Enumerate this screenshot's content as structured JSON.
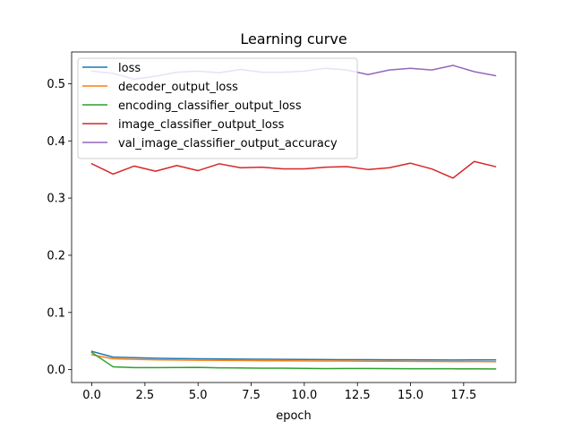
{
  "chart_data": {
    "type": "line",
    "title": "Learning curve",
    "xlabel": "epoch",
    "ylabel": "",
    "xlim": [
      -0.95,
      19.95
    ],
    "ylim": [
      -0.0225,
      0.5555
    ],
    "xticks": [
      0.0,
      2.5,
      5.0,
      7.5,
      10.0,
      12.5,
      15.0,
      17.5
    ],
    "xtick_labels": [
      "0.0",
      "2.5",
      "5.0",
      "7.5",
      "10.0",
      "12.5",
      "15.0",
      "17.5"
    ],
    "yticks": [
      0.0,
      0.1,
      0.2,
      0.3,
      0.4,
      0.5
    ],
    "ytick_labels": [
      "0.0",
      "0.1",
      "0.2",
      "0.3",
      "0.4",
      "0.5"
    ],
    "grid": false,
    "legend_position": "top-left",
    "x": [
      0,
      1,
      2,
      3,
      4,
      5,
      6,
      7,
      8,
      9,
      10,
      11,
      12,
      13,
      14,
      15,
      16,
      17,
      18,
      19
    ],
    "series": [
      {
        "name": "loss",
        "color": "#1f77b4",
        "values": [
          0.032,
          0.022,
          0.021,
          0.02,
          0.0195,
          0.019,
          0.0188,
          0.0185,
          0.0182,
          0.018,
          0.0178,
          0.0176,
          0.0175,
          0.0174,
          0.0173,
          0.0172,
          0.017,
          0.0168,
          0.017,
          0.017
        ]
      },
      {
        "name": "decoder_output_loss",
        "color": "#ff7f0e",
        "values": [
          0.026,
          0.019,
          0.018,
          0.0172,
          0.0168,
          0.0165,
          0.0162,
          0.016,
          0.0157,
          0.0155,
          0.0153,
          0.0151,
          0.015,
          0.0148,
          0.0147,
          0.0145,
          0.0143,
          0.0142,
          0.0141,
          0.014
        ]
      },
      {
        "name": "encoding_classifier_output_loss",
        "color": "#2ca02c",
        "values": [
          0.03,
          0.005,
          0.0035,
          0.0035,
          0.0038,
          0.004,
          0.0032,
          0.003,
          0.0025,
          0.0025,
          0.0022,
          0.0018,
          0.002,
          0.002,
          0.0018,
          0.0016,
          0.0015,
          0.0015,
          0.0013,
          0.0012
        ]
      },
      {
        "name": "image_classifier_output_loss",
        "color": "#d62728",
        "values": [
          0.36,
          0.342,
          0.356,
          0.347,
          0.357,
          0.348,
          0.36,
          0.353,
          0.354,
          0.351,
          0.351,
          0.354,
          0.355,
          0.35,
          0.353,
          0.361,
          0.351,
          0.335,
          0.364,
          0.355
        ]
      },
      {
        "name": "val_image_classifier_output_accuracy",
        "color": "#9467bd",
        "values": [
          0.522,
          0.518,
          0.508,
          0.513,
          0.52,
          0.522,
          0.519,
          0.525,
          0.52,
          0.52,
          0.522,
          0.527,
          0.524,
          0.516,
          0.524,
          0.527,
          0.524,
          0.532,
          0.521,
          0.514
        ]
      }
    ]
  }
}
